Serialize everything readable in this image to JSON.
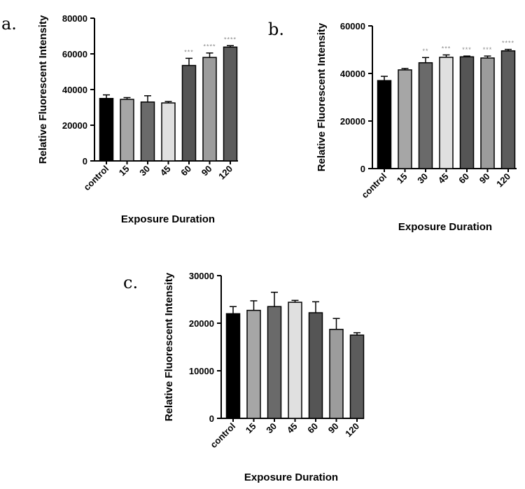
{
  "colors": {
    "control": "#000000",
    "15": "#a6a6a6",
    "30": "#6a6a6a",
    "45": "#e0e0e0",
    "60": "#555555",
    "90": "#9c9c9c",
    "120": "#5c5c5c",
    "significance": "#8a8a8a"
  },
  "chart_data": [
    {
      "type": "bar",
      "panel_label": "a.",
      "xlabel": "Exposure Duration",
      "ylabel": "Relative Fluorescent Intensity",
      "ylim": [
        0,
        80000
      ],
      "yticks": [
        "0",
        "20000",
        "40000",
        "60000",
        "80000"
      ],
      "categories": [
        "control",
        "15",
        "30",
        "45",
        "60",
        "90",
        "120"
      ],
      "values": [
        35000,
        34500,
        33000,
        32500,
        53500,
        58000,
        63800
      ],
      "errors": [
        2000,
        1000,
        3500,
        800,
        4000,
        2500,
        800
      ],
      "significance": [
        "",
        "",
        "",
        "",
        "***",
        "****",
        "****"
      ]
    },
    {
      "type": "bar",
      "panel_label": "b.",
      "xlabel": "Exposure Duration",
      "ylabel": "Relative Fluorescent Intensity",
      "ylim": [
        0,
        60000
      ],
      "yticks": [
        "0",
        "20000",
        "40000",
        "60000"
      ],
      "categories": [
        "control",
        "15",
        "30",
        "45",
        "60",
        "90",
        "120"
      ],
      "values": [
        37000,
        41500,
        44500,
        46800,
        47000,
        46500,
        49500
      ],
      "errors": [
        1800,
        600,
        2200,
        1000,
        300,
        800,
        600
      ],
      "significance": [
        "",
        "",
        "**",
        "***",
        "***",
        "***",
        "****"
      ]
    },
    {
      "type": "bar",
      "panel_label": "c.",
      "xlabel": "Exposure Duration",
      "ylabel": "Relative Fluorescent Intensity",
      "ylim": [
        0,
        30000
      ],
      "yticks": [
        "0",
        "10000",
        "20000",
        "30000"
      ],
      "categories": [
        "control",
        "15",
        "30",
        "45",
        "60",
        "90",
        "120"
      ],
      "values": [
        22000,
        22700,
        23500,
        24400,
        22200,
        18700,
        17500
      ],
      "errors": [
        1500,
        2000,
        3000,
        400,
        2300,
        2300,
        500
      ],
      "significance": [
        "",
        "",
        "",
        "",
        "",
        "",
        ""
      ]
    }
  ]
}
